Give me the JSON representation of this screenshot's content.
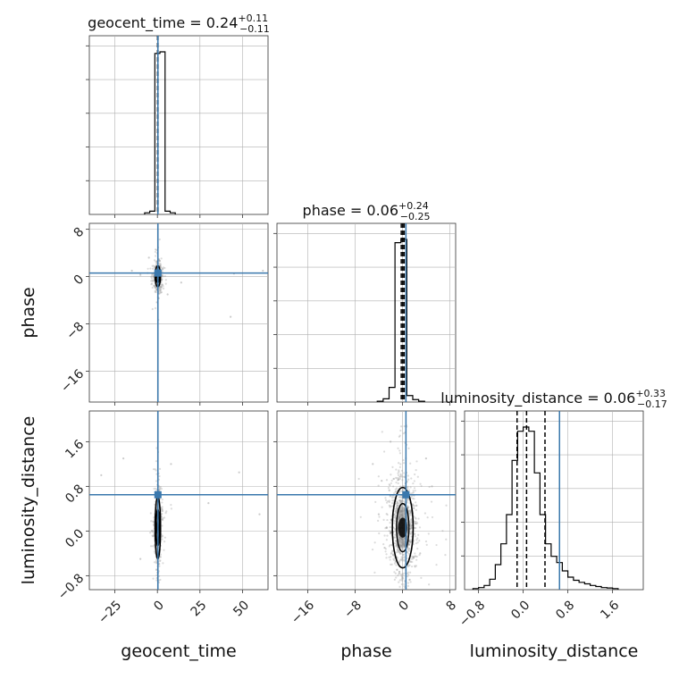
{
  "chart_data": {
    "type": "corner",
    "parameters": [
      "geocent_time",
      "phase",
      "luminosity_distance"
    ],
    "grid": true,
    "truth_color": "#3a78ad",
    "hist_color": "#000000",
    "points_color": "#9a9a9a",
    "truths": {
      "geocent_time": 0.3,
      "phase": 0.6,
      "luminosity_distance": 0.65
    },
    "titles": [
      {
        "param": "geocent_time",
        "text": "geocent_time = 0.24",
        "plus": "+0.11",
        "minus": "−0.11"
      },
      {
        "param": "phase",
        "text": "phase = 0.06",
        "plus": "+0.24",
        "minus": "−0.25"
      },
      {
        "param": "luminosity_distance",
        "text": "luminosity_distance = 0.06",
        "plus": "+0.33",
        "minus": "−0.17"
      }
    ],
    "axes": {
      "geocent_time": {
        "label": "geocent_time",
        "range": [
          -40,
          65
        ],
        "ticks": [
          -25,
          0,
          25,
          50
        ],
        "tick_labels": [
          "−25",
          "0",
          "25",
          "50"
        ]
      },
      "phase": {
        "label": "phase",
        "range": [
          -21.2,
          9.0
        ],
        "ticks": [
          -16,
          -8,
          0,
          8
        ],
        "tick_labels": [
          "−16",
          "−8",
          "0",
          "8"
        ]
      },
      "luminosity_distance": {
        "label": "luminosity_distance",
        "range": [
          -1.05,
          2.15
        ],
        "ticks": [
          -0.8,
          0.0,
          0.8,
          1.6
        ],
        "tick_labels": [
          "−0.8",
          "0.0",
          "0.8",
          "1.6"
        ]
      }
    },
    "diag_hist": {
      "geocent_time": {
        "quantiles": [
          0.13,
          0.24,
          0.35
        ],
        "edges": [
          -7.5,
          -4.5,
          -1.5,
          1.5,
          4.5,
          7.5,
          10.5
        ],
        "counts": [
          0.01,
          0.02,
          0.99,
          1.0,
          0.02,
          0.01
        ]
      },
      "phase": {
        "quantiles": [
          -0.19,
          0.06,
          0.3
        ],
        "edges": [
          -4.25,
          -3.25,
          -2.25,
          -1.25,
          -0.25,
          0.75,
          1.75,
          2.75,
          3.75
        ],
        "counts": [
          0.005,
          0.02,
          0.09,
          0.98,
          1.0,
          0.04,
          0.015,
          0.005
        ]
      },
      "luminosity_distance": {
        "quantiles": [
          -0.11,
          0.06,
          0.39
        ],
        "edges": [
          -0.9,
          -0.8,
          -0.7,
          -0.6,
          -0.5,
          -0.4,
          -0.3,
          -0.2,
          -0.1,
          0.0,
          0.1,
          0.2,
          0.3,
          0.4,
          0.5,
          0.6,
          0.7,
          0.8,
          0.9,
          1.0,
          1.1,
          1.2,
          1.3,
          1.4,
          1.5,
          1.6,
          1.7
        ],
        "counts": [
          0.005,
          0.01,
          0.02,
          0.05,
          0.12,
          0.22,
          0.36,
          0.62,
          0.76,
          0.78,
          0.76,
          0.56,
          0.36,
          0.22,
          0.16,
          0.13,
          0.09,
          0.06,
          0.045,
          0.035,
          0.028,
          0.02,
          0.015,
          0.01,
          0.008,
          0.005
        ]
      }
    },
    "pair_samples": {
      "geocent_time_vs_phase": {
        "center": [
          0.24,
          0.06
        ],
        "sigma": [
          1.0,
          1.1
        ],
        "count": 500,
        "outliers": [
          [
            -15,
            1.0
          ],
          [
            45,
            0.5
          ],
          [
            62,
            1.0
          ],
          [
            -10,
            0.3
          ],
          [
            14,
            -1.0
          ],
          [
            43,
            -6.8
          ],
          [
            -5,
            3.2
          ],
          [
            6,
            -3.0
          ]
        ]
      },
      "geocent_time_vs_luminosity_distance": {
        "center": [
          0.24,
          0.06
        ],
        "sigma": [
          1.0,
          0.35
        ],
        "count": 500,
        "outliers": [
          [
            -33,
            1.0
          ],
          [
            48,
            1.05
          ],
          [
            60,
            0.3
          ],
          [
            -20,
            1.3
          ],
          [
            30,
            0.5
          ],
          [
            -10,
            -0.5
          ],
          [
            8,
            1.2
          ]
        ]
      },
      "phase_vs_luminosity_distance": {
        "center": [
          0.06,
          0.06
        ],
        "sigma": [
          1.1,
          0.45
        ],
        "count": 900,
        "outliers": [
          [
            -5,
            1.2
          ],
          [
            -3.5,
            0.9
          ],
          [
            -4,
            0.3
          ],
          [
            5,
            0.8
          ],
          [
            4,
            1.3
          ],
          [
            -2,
            1.6
          ],
          [
            3,
            -0.4
          ],
          [
            -3,
            -0.3
          ]
        ]
      }
    }
  }
}
